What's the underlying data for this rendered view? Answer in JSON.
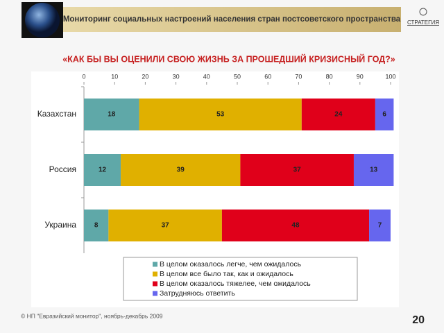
{
  "header": {
    "title": "Мониторинг социальных настроений населения стран постсоветского пространства",
    "logo": "СТРАТЕГИЯ"
  },
  "chart_data": {
    "type": "stacked-barh",
    "title": "«КАК БЫ ВЫ ОЦЕНИЛИ СВОЮ ЖИЗНЬ ЗА ПРОШЕДШИЙ КРИЗИСНЫЙ ГОД?»",
    "categories": [
      "Казахстан",
      "Россия",
      "Украина"
    ],
    "series": [
      {
        "name": "В целом оказалось легче, чем ожидалось",
        "color": "#5fa8a8",
        "values": [
          18,
          12,
          8
        ]
      },
      {
        "name": "В целом все было так, как и ожидалось",
        "color": "#e0b000",
        "values": [
          53,
          39,
          37
        ]
      },
      {
        "name": "В целом оказалось тяжелее, чем ожидалось",
        "color": "#e0001a",
        "values": [
          24,
          37,
          48
        ]
      },
      {
        "name": "Затрудняюсь ответить",
        "color": "#6666ee",
        "values": [
          6,
          13,
          7
        ]
      }
    ],
    "xlim": [
      0,
      100
    ],
    "xticks": [
      0,
      10,
      20,
      30,
      40,
      50,
      60,
      70,
      80,
      90,
      100
    ],
    "grid": false,
    "legend": "bottom"
  },
  "footer": {
    "source": "© НП \"Евразийский монитор\", ноябрь-декабрь 2009",
    "page": 20
  }
}
